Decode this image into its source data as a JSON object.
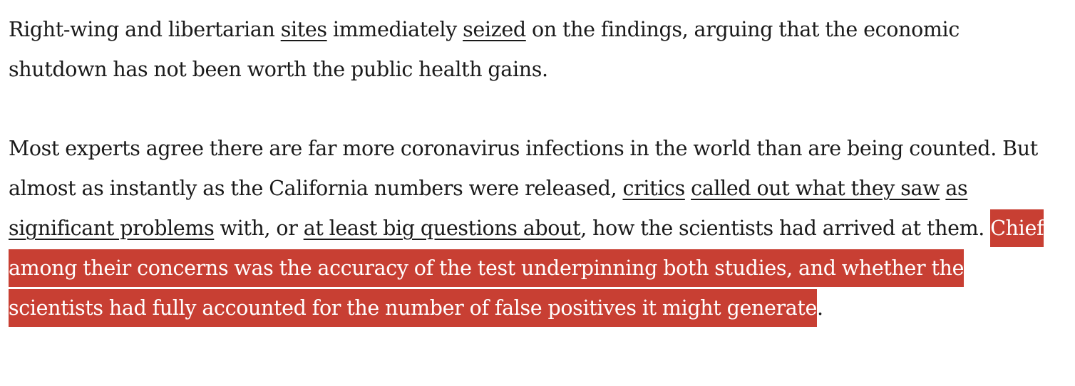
{
  "paragraphs": [
    {
      "segments": [
        {
          "text": "Right-wing and libertarian "
        },
        {
          "text": "sites",
          "link": true
        },
        {
          "text": " immediately "
        },
        {
          "text": "seized",
          "link": true
        },
        {
          "text": " on the findings, arguing that the economic shutdown has not been worth the public health gains."
        }
      ]
    },
    {
      "segments": [
        {
          "text": "Most experts agree there are far more coronavirus infections in the world than are being counted. But almost as instantly as the California numbers were released, "
        },
        {
          "text": "critics",
          "link": true
        },
        {
          "text": " "
        },
        {
          "text": "called out what they saw",
          "link": true
        },
        {
          "text": " "
        },
        {
          "text": "as significant problems",
          "link": true
        },
        {
          "text": " with, or "
        },
        {
          "text": "at least big questions about",
          "link": true
        },
        {
          "text": ", how the scientists had arrived at them. "
        },
        {
          "text": "Chief among their concerns was the accuracy of the test underpinning both studies, and whether the scientists had fully accounted for the number of false positives it might generate",
          "highlight": true
        },
        {
          "text": "."
        }
      ]
    }
  ],
  "highlight_color": "#c83f33",
  "text_color": "#1a1a1a"
}
